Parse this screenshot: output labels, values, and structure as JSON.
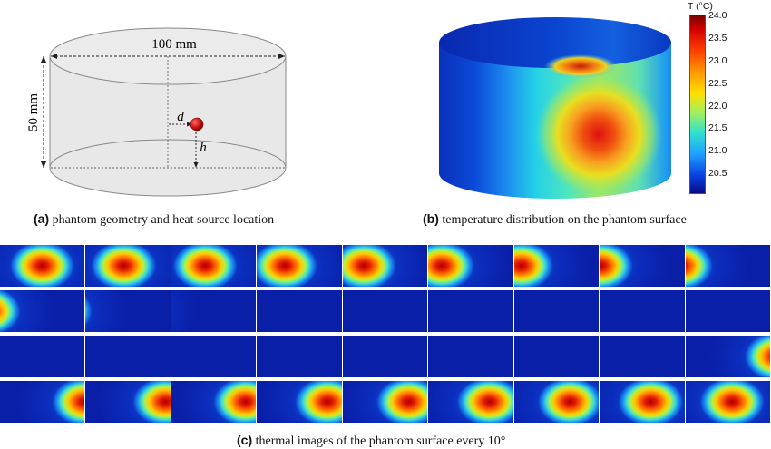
{
  "panel_a": {
    "label": "(a)",
    "caption": "phantom geometry and heat source location",
    "diameter_label": "100 mm",
    "height_label": "50 mm",
    "d_label": "d",
    "h_label": "h"
  },
  "panel_b": {
    "label": "(b)",
    "caption": "temperature distribution on the phantom surface",
    "colorbar_title": "T (°C)",
    "colorbar_ticks": [
      "24.0",
      "23.5",
      "23.0",
      "22.5",
      "22.0",
      "21.5",
      "21.0",
      "20.5"
    ]
  },
  "panel_c": {
    "label": "(c)",
    "caption": "thermal images of the phantom surface every 10°",
    "rows": 4,
    "columns": 9,
    "hot_spot_position_per_frame": [
      0.5,
      0.45,
      0.4,
      0.33,
      0.25,
      0.16,
      0.08,
      0.01,
      -0.06,
      -0.14,
      -0.3,
      -0.5,
      -0.7,
      -0.9,
      -1.1,
      -1.3,
      -1.5,
      -1.7,
      -1.9,
      -2.1,
      -2.3,
      -2.5,
      -2.7,
      -2.9,
      -3.1,
      -3.3,
      1.08,
      1.0,
      0.94,
      0.88,
      0.83,
      0.78,
      0.72,
      0.66,
      0.6,
      0.55
    ],
    "colors": {
      "cold": "#0a1fa8",
      "hot": "#d40000"
    }
  }
}
